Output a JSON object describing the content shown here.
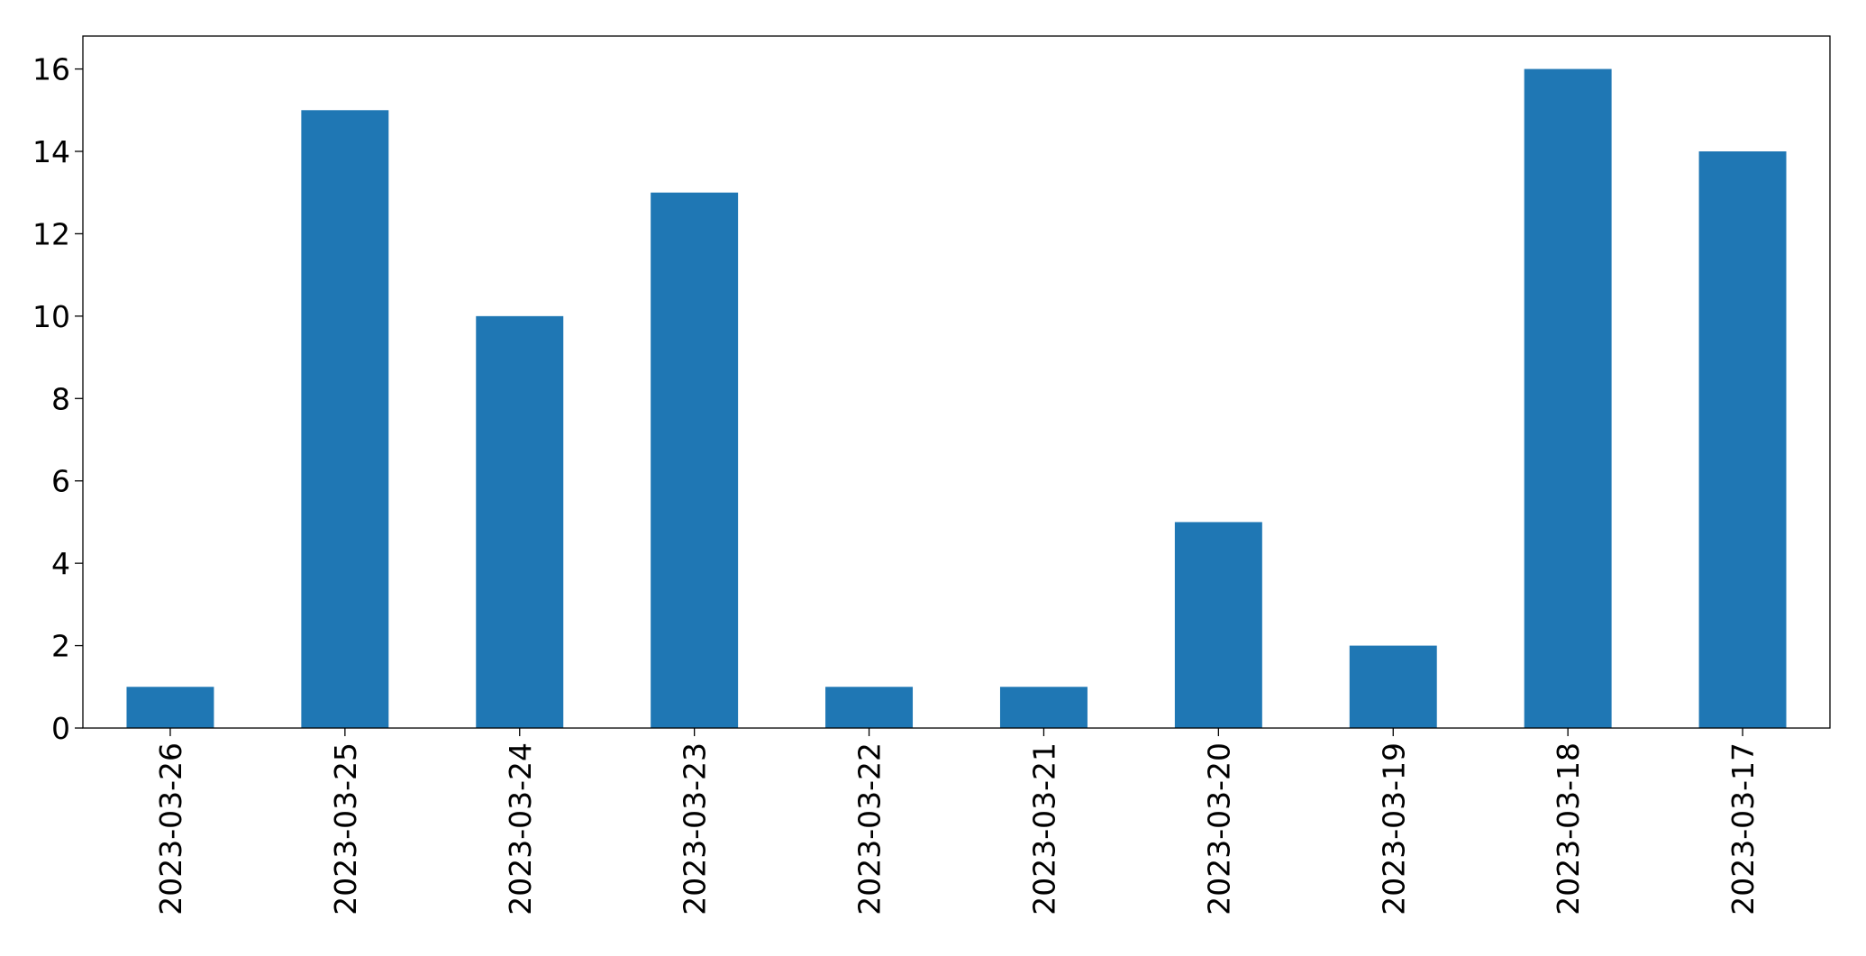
{
  "chart_data": {
    "type": "bar",
    "categories": [
      "2023-03-26",
      "2023-03-25",
      "2023-03-24",
      "2023-03-23",
      "2023-03-22",
      "2023-03-21",
      "2023-03-20",
      "2023-03-19",
      "2023-03-18",
      "2023-03-17"
    ],
    "values": [
      1,
      15,
      10,
      13,
      1,
      1,
      5,
      2,
      16,
      14
    ],
    "color": "#1f77b4",
    "ylim": [
      0,
      16.8
    ],
    "yticks": [
      0,
      2,
      4,
      6,
      8,
      10,
      12,
      14,
      16
    ],
    "grid": false
  }
}
